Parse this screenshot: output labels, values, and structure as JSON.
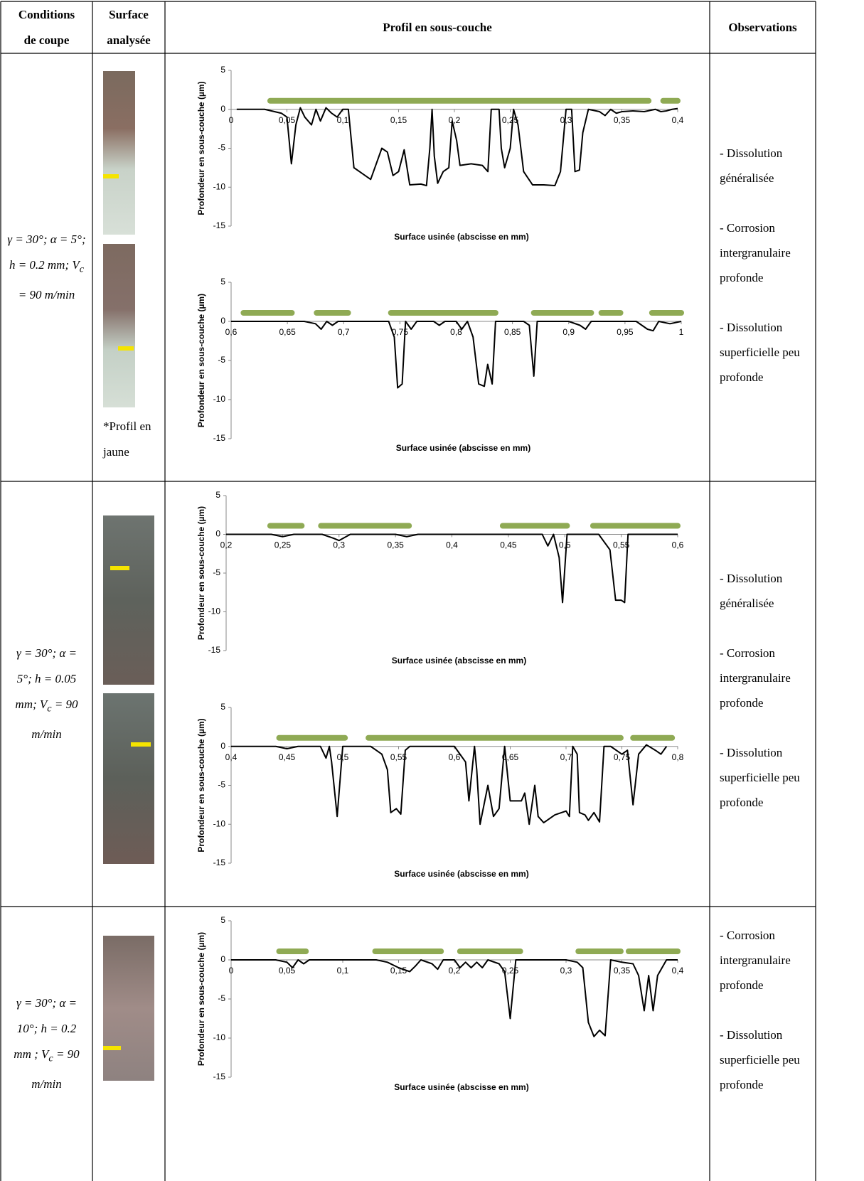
{
  "header": [
    "Conditions de coupe",
    "Surface analysée",
    "Profil en sous-couche",
    "Observations"
  ],
  "image_note": "*Profil en jaune",
  "rows": [
    {
      "conditions": {
        "main": "γ = 30°; α = 5°; h = 0.2 mm; V",
        "sub": "c",
        "tail": "= 90 m/min"
      },
      "observations": [
        "- Dissolution généralisée",
        "- Corrosion intergranulaire profonde",
        "- Dissolution superficielle peu profonde"
      ],
      "charts": [
        {
          "type": "line",
          "y_label": "Profondeur en sous-couche (µm)",
          "x_label": "Surface usinée (abscisse en mm)",
          "color": "#000000",
          "band_color": "#8faa54",
          "xlim": [
            0,
            0.4
          ],
          "ylim": [
            -15,
            5
          ],
          "yticks": [
            -15,
            -10,
            -5,
            0,
            5
          ],
          "xticks": [
            0,
            {
              "value": 0.05,
              "label": "0,05"
            },
            {
              "value": 0.1,
              "label": "0,1"
            },
            {
              "value": 0.15,
              "label": "0,15"
            },
            {
              "value": 0.2,
              "label": "0,2"
            },
            {
              "value": 0.25,
              "label": "0,25"
            },
            {
              "value": 0.3,
              "label": "0,3"
            },
            {
              "value": 0.35,
              "label": "0,35"
            },
            {
              "value": 0.4,
              "label": "0,4"
            }
          ],
          "bands": [
            [
              0.035,
              0.374
            ],
            [
              0.387,
              0.4
            ]
          ],
          "x": [
            0.005,
            0.03,
            0.045,
            0.05,
            0.054,
            0.058,
            0.062,
            0.066,
            0.072,
            0.076,
            0.08,
            0.085,
            0.09,
            0.095,
            0.1,
            0.105,
            0.11,
            0.115,
            0.125,
            0.13,
            0.135,
            0.14,
            0.145,
            0.15,
            0.155,
            0.16,
            0.17,
            0.175,
            0.178,
            0.18,
            0.182,
            0.185,
            0.19,
            0.195,
            0.198,
            0.202,
            0.205,
            0.215,
            0.225,
            0.23,
            0.233,
            0.24,
            0.242,
            0.245,
            0.25,
            0.253,
            0.257,
            0.262,
            0.27,
            0.28,
            0.29,
            0.295,
            0.3,
            0.305,
            0.308,
            0.312,
            0.315,
            0.32,
            0.33,
            0.335,
            0.34,
            0.345,
            0.35,
            0.36,
            0.37,
            0.38,
            0.385,
            0.39,
            0.395,
            0.4
          ],
          "values": [
            0,
            0,
            -0.5,
            -1,
            -7,
            -2,
            0.2,
            -1,
            -2,
            0,
            -1.5,
            0.2,
            -0.5,
            -1,
            0,
            0,
            -7.5,
            -8,
            -9,
            -7,
            -5,
            -5.5,
            -8.5,
            -8,
            -5.2,
            -9.7,
            -9.6,
            -9.8,
            -5,
            0,
            -6,
            -9.5,
            -8,
            -7.5,
            -1.5,
            -4,
            -7.2,
            -7,
            -7.2,
            -8,
            0,
            0,
            -5,
            -7.5,
            -5,
            0,
            -2,
            -8,
            -9.7,
            -9.7,
            -9.8,
            -8,
            0,
            0,
            -8,
            -7.8,
            -3,
            0,
            -0.3,
            -0.8,
            0,
            -0.5,
            -0.3,
            -0.2,
            -0.3,
            0,
            -0.3,
            -0.2,
            0,
            0.1
          ]
        },
        {
          "type": "line",
          "y_label": "Profondeur en sous-couche (µm)",
          "x_label": "Surface usinée (abscisse en mm)",
          "color": "#000000",
          "band_color": "#8faa54",
          "xlim": [
            0.6,
            1
          ],
          "ylim": [
            -15,
            5
          ],
          "yticks": [
            -15,
            -10,
            -5,
            0,
            5
          ],
          "xticks": [
            {
              "value": 0.6,
              "label": "0,6"
            },
            {
              "value": 0.65,
              "label": "0,65"
            },
            {
              "value": 0.7,
              "label": "0,7"
            },
            {
              "value": 0.75,
              "label": "0,75"
            },
            {
              "value": 0.8,
              "label": "0,8"
            },
            {
              "value": 0.85,
              "label": "0,85"
            },
            {
              "value": 0.9,
              "label": "0,9"
            },
            {
              "value": 0.95,
              "label": "0,95"
            },
            1
          ],
          "bands": [
            [
              0.611,
              0.654
            ],
            [
              0.676,
              0.704
            ],
            [
              0.742,
              0.835
            ],
            [
              0.869,
              0.92
            ],
            [
              0.929,
              0.946
            ],
            [
              0.974,
              1
            ]
          ],
          "x": [
            0.6,
            0.665,
            0.675,
            0.68,
            0.685,
            0.69,
            0.695,
            0.74,
            0.745,
            0.748,
            0.752,
            0.755,
            0.76,
            0.765,
            0.78,
            0.785,
            0.79,
            0.8,
            0.805,
            0.81,
            0.815,
            0.82,
            0.825,
            0.828,
            0.832,
            0.835,
            0.86,
            0.865,
            0.869,
            0.872,
            0.9,
            0.91,
            0.915,
            0.92,
            0.96,
            0.97,
            0.975,
            0.98,
            0.99,
            1
          ],
          "values": [
            0,
            0,
            -0.3,
            -1,
            0,
            -0.5,
            0,
            0,
            -2,
            -8.5,
            -8,
            0,
            -1,
            0,
            0,
            -0.5,
            0,
            0,
            -1,
            0,
            -2,
            -8,
            -8.3,
            -5.5,
            -8,
            0,
            0,
            -0.5,
            -7,
            0,
            0,
            -0.5,
            -1,
            0,
            0,
            -1,
            -1.2,
            0,
            -0.3,
            0
          ]
        }
      ]
    },
    {
      "conditions": {
        "main": "γ = 30°; α = 5°; h = 0.05 mm; V",
        "sub": "c",
        "tail": "= 90 m/min"
      },
      "observations": [
        "- Dissolution généralisée",
        "- Corrosion intergranulaire profonde",
        "- Dissolution superficielle peu profonde"
      ],
      "charts": [
        {
          "type": "line",
          "y_label": "Profondeur en sous-couche (µm)",
          "x_label": "Surface usinée (abscisse en mm)",
          "color": "#000000",
          "band_color": "#8faa54",
          "xlim": [
            0.2,
            0.6
          ],
          "ylim": [
            -15,
            5
          ],
          "yticks": [
            -15,
            -10,
            -5,
            0,
            5
          ],
          "xticks": [
            {
              "value": 0.2,
              "label": "0,2"
            },
            {
              "value": 0.25,
              "label": "0,25"
            },
            {
              "value": 0.3,
              "label": "0,3"
            },
            {
              "value": 0.35,
              "label": "0,35"
            },
            {
              "value": 0.4,
              "label": "0,4"
            },
            {
              "value": 0.45,
              "label": "0,45"
            },
            {
              "value": 0.5,
              "label": "0,5"
            },
            {
              "value": 0.55,
              "label": "0,55"
            },
            {
              "value": 0.6,
              "label": "0,6"
            }
          ],
          "bands": [
            [
              0.239,
              0.267
            ],
            [
              0.284,
              0.362
            ],
            [
              0.445,
              0.502
            ],
            [
              0.525,
              0.6
            ]
          ],
          "x": [
            0.2,
            0.24,
            0.25,
            0.26,
            0.285,
            0.295,
            0.3,
            0.31,
            0.35,
            0.36,
            0.37,
            0.48,
            0.485,
            0.49,
            0.495,
            0.498,
            0.502,
            0.51,
            0.53,
            0.54,
            0.545,
            0.55,
            0.553,
            0.556,
            0.6
          ],
          "values": [
            0,
            0,
            -0.3,
            0,
            0,
            -0.5,
            -0.8,
            0,
            0,
            -0.3,
            0,
            0,
            -1.5,
            0,
            -3,
            -8.8,
            0,
            0,
            0,
            -2,
            -8.5,
            -8.5,
            -8.8,
            0,
            0
          ]
        },
        {
          "type": "line",
          "y_label": "Profondeur en sous-couche (µm)",
          "x_label": "Surface usinée (abscisse en mm)",
          "color": "#000000",
          "band_color": "#8faa54",
          "xlim": [
            0.4,
            0.8
          ],
          "ylim": [
            -15,
            5
          ],
          "yticks": [
            -15,
            -10,
            -5,
            0,
            5
          ],
          "xticks": [
            {
              "value": 0.4,
              "label": "0,4"
            },
            {
              "value": 0.45,
              "label": "0,45"
            },
            {
              "value": 0.5,
              "label": "0,5"
            },
            {
              "value": 0.55,
              "label": "0,55"
            },
            {
              "value": 0.6,
              "label": "0,6"
            },
            {
              "value": 0.65,
              "label": "0,65"
            },
            {
              "value": 0.7,
              "label": "0,7"
            },
            {
              "value": 0.75,
              "label": "0,75"
            },
            {
              "value": 0.8,
              "label": "0,8"
            }
          ],
          "bands": [
            [
              0.443,
              0.502
            ],
            [
              0.523,
              0.749
            ],
            [
              0.76,
              0.795
            ]
          ],
          "x": [
            0.4,
            0.44,
            0.45,
            0.46,
            0.48,
            0.485,
            0.488,
            0.49,
            0.495,
            0.5,
            0.525,
            0.53,
            0.535,
            0.54,
            0.543,
            0.548,
            0.552,
            0.556,
            0.56,
            0.6,
            0.61,
            0.613,
            0.618,
            0.62,
            0.623,
            0.63,
            0.635,
            0.64,
            0.645,
            0.65,
            0.66,
            0.663,
            0.667,
            0.672,
            0.675,
            0.68,
            0.69,
            0.7,
            0.703,
            0.706,
            0.71,
            0.712,
            0.717,
            0.72,
            0.725,
            0.73,
            0.734,
            0.74,
            0.75,
            0.755,
            0.76,
            0.765,
            0.772,
            0.78,
            0.785,
            0.79
          ],
          "values": [
            0,
            0,
            -0.3,
            0,
            0,
            -1.5,
            0,
            -2,
            -9,
            0,
            0,
            -0.5,
            -1,
            -3,
            -8.5,
            -8,
            -8.7,
            -0.5,
            0,
            0,
            -2,
            -7,
            0,
            -3,
            -10,
            -5,
            -9,
            -8,
            0,
            -7,
            -7,
            -6,
            -10,
            -5,
            -9,
            -9.8,
            -8.8,
            -8.3,
            -9,
            0,
            -1,
            -8.5,
            -8.8,
            -9.5,
            -8.5,
            -9.7,
            0,
            0,
            -1,
            -0.5,
            -7.5,
            -1,
            0.2,
            -0.5,
            -1,
            0
          ]
        }
      ]
    },
    {
      "conditions": {
        "main": "γ = 30°; α = 10°; h = 0.2 mm ; V",
        "sub": "c",
        "tail": "= 90 m/min"
      },
      "observations": [
        "- Corrosion intergranulaire profonde",
        "- Dissolution superficielle peu profonde"
      ],
      "charts": [
        {
          "type": "line",
          "y_label": "Profondeur en sous-couche (µm)",
          "x_label": "Surface usinée (abscisse en mm)",
          "color": "#000000",
          "band_color": "#8faa54",
          "xlim": [
            0,
            0.4
          ],
          "ylim": [
            -15,
            5
          ],
          "yticks": [
            -15,
            -10,
            -5,
            0,
            5
          ],
          "xticks": [
            0,
            {
              "value": 0.05,
              "label": "0,05"
            },
            {
              "value": 0.1,
              "label": "0,1"
            },
            {
              "value": 0.15,
              "label": "0,15"
            },
            {
              "value": 0.2,
              "label": "0,2"
            },
            {
              "value": 0.25,
              "label": "0,25"
            },
            {
              "value": 0.3,
              "label": "0,3"
            },
            {
              "value": 0.35,
              "label": "0,35"
            },
            {
              "value": 0.4,
              "label": "0,4"
            }
          ],
          "bands": [
            [
              0.043,
              0.067
            ],
            [
              0.129,
              0.188
            ],
            [
              0.205,
              0.259
            ],
            [
              0.311,
              0.349
            ],
            [
              0.356,
              0.4
            ]
          ],
          "x": [
            0,
            0.04,
            0.05,
            0.055,
            0.06,
            0.065,
            0.07,
            0.13,
            0.14,
            0.15,
            0.16,
            0.165,
            0.17,
            0.18,
            0.185,
            0.19,
            0.2,
            0.205,
            0.21,
            0.215,
            0.22,
            0.225,
            0.23,
            0.24,
            0.245,
            0.25,
            0.255,
            0.26,
            0.3,
            0.31,
            0.315,
            0.32,
            0.325,
            0.33,
            0.335,
            0.34,
            0.35,
            0.36,
            0.365,
            0.37,
            0.374,
            0.378,
            0.382,
            0.39,
            0.4
          ],
          "values": [
            0,
            0,
            -0.3,
            -1,
            0,
            -0.5,
            0,
            0,
            -0.3,
            -1,
            -1.5,
            -0.8,
            0,
            -0.5,
            -1.2,
            0,
            0,
            -1,
            -0.3,
            -1,
            -0.3,
            -1,
            0,
            -0.5,
            -1.5,
            -7.5,
            0,
            0,
            0,
            -0.3,
            -1,
            -8,
            -9.8,
            -9,
            -9.7,
            0,
            -0.3,
            -0.5,
            -2,
            -6.5,
            -2,
            -6.5,
            -2,
            0,
            0
          ]
        }
      ]
    }
  ]
}
